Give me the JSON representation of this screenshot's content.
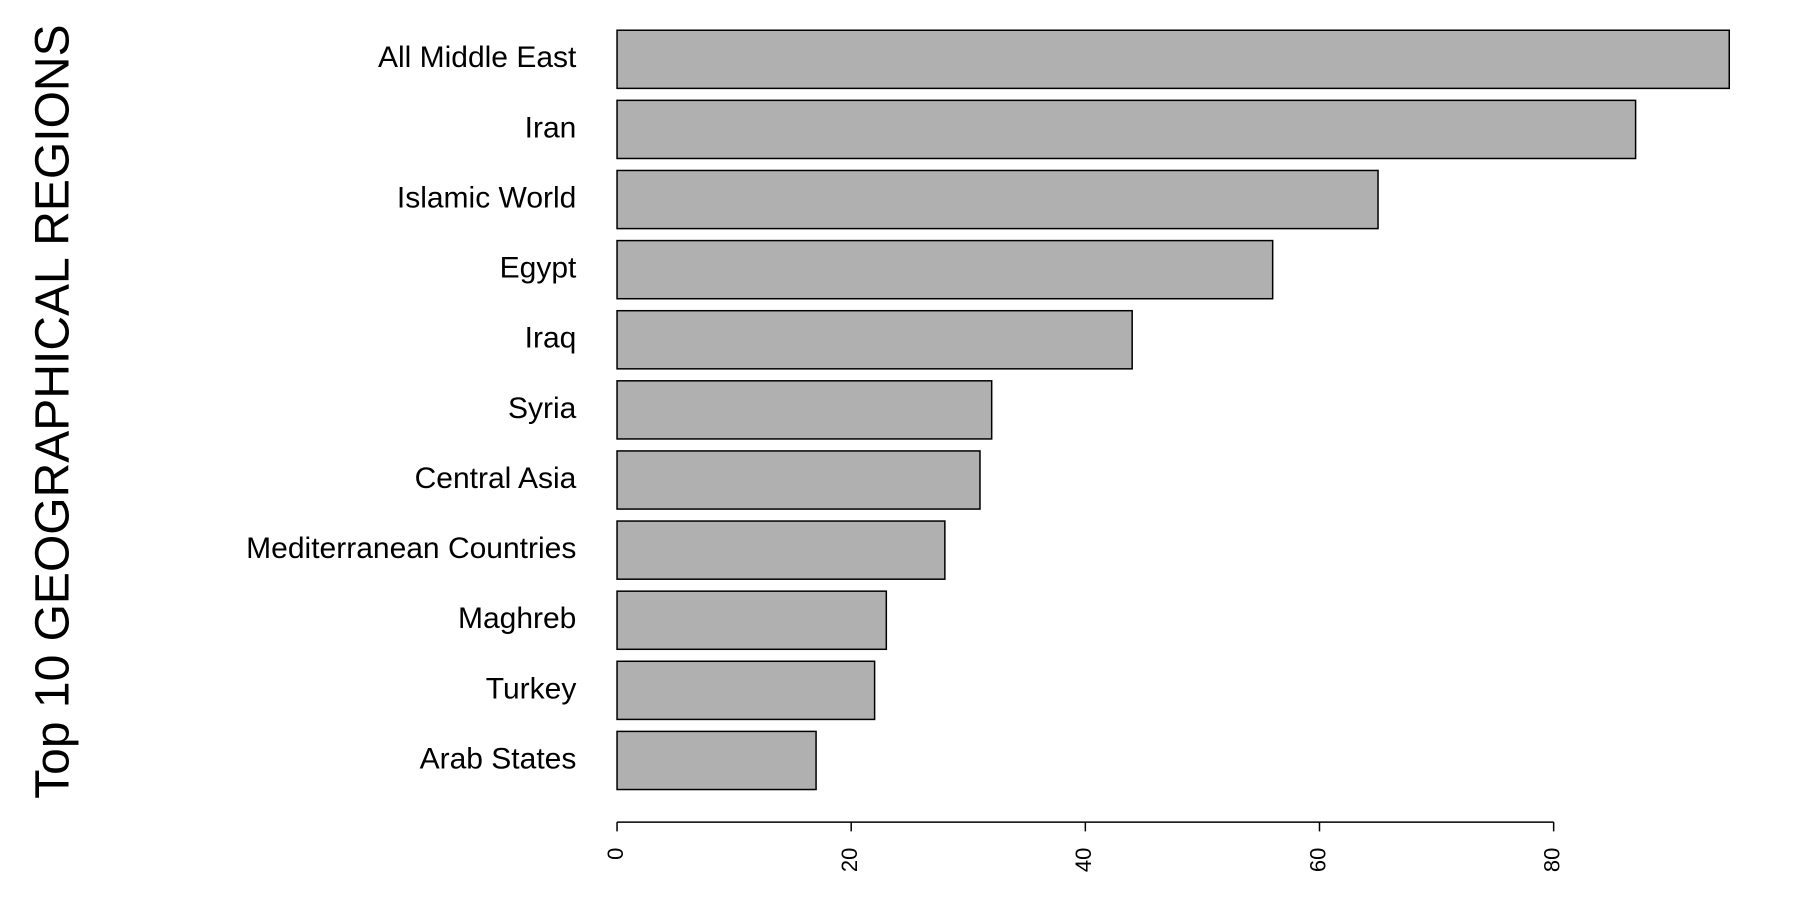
{
  "chart_data": {
    "type": "bar",
    "orientation": "horizontal",
    "ylabel": "Top 10 GEOGRAPHICAL REGIONS",
    "xlabel": "",
    "categories": [
      "All Middle East",
      "Iran",
      "Islamic World",
      "Egypt",
      "Iraq",
      "Syria",
      "Central Asia",
      "Mediterranean Countries",
      "Maghreb",
      "Turkey",
      "Arab States"
    ],
    "values": [
      95,
      87,
      65,
      56,
      44,
      32,
      31,
      28,
      23,
      22,
      17
    ],
    "xlim": [
      0,
      95
    ],
    "x_ticks": [
      0,
      20,
      40,
      60,
      80
    ],
    "grid": false,
    "colors": {
      "bar_fill": "#b0b0b0",
      "bar_stroke": "#000000"
    }
  }
}
